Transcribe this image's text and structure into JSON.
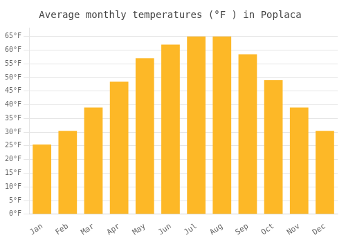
{
  "chart_data": {
    "type": "bar",
    "title": "Average monthly temperatures (°F ) in Poplaca",
    "categories": [
      "Jan",
      "Feb",
      "Mar",
      "Apr",
      "May",
      "Jun",
      "Jul",
      "Aug",
      "Sep",
      "Oct",
      "Nov",
      "Dec"
    ],
    "values": [
      25.5,
      30.5,
      39.0,
      48.5,
      57.0,
      62.0,
      65.0,
      65.0,
      58.5,
      49.0,
      39.0,
      30.5
    ],
    "color": "#FDB827",
    "ylim": [
      0,
      68
    ],
    "yticks": [
      {
        "value": 0,
        "label": "0°F"
      },
      {
        "value": 5,
        "label": "5°F"
      },
      {
        "value": 10,
        "label": "10°F"
      },
      {
        "value": 15,
        "label": "15°F"
      },
      {
        "value": 20,
        "label": "20°F"
      },
      {
        "value": 25,
        "label": "25°F"
      },
      {
        "value": 30,
        "label": "30°F"
      },
      {
        "value": 35,
        "label": "35°F"
      },
      {
        "value": 40,
        "label": "40°F"
      },
      {
        "value": 45,
        "label": "45°F"
      },
      {
        "value": 50,
        "label": "50°F"
      },
      {
        "value": 55,
        "label": "55°F"
      },
      {
        "value": 60,
        "label": "60°F"
      },
      {
        "value": 65,
        "label": "65°F"
      }
    ],
    "grid": true
  }
}
